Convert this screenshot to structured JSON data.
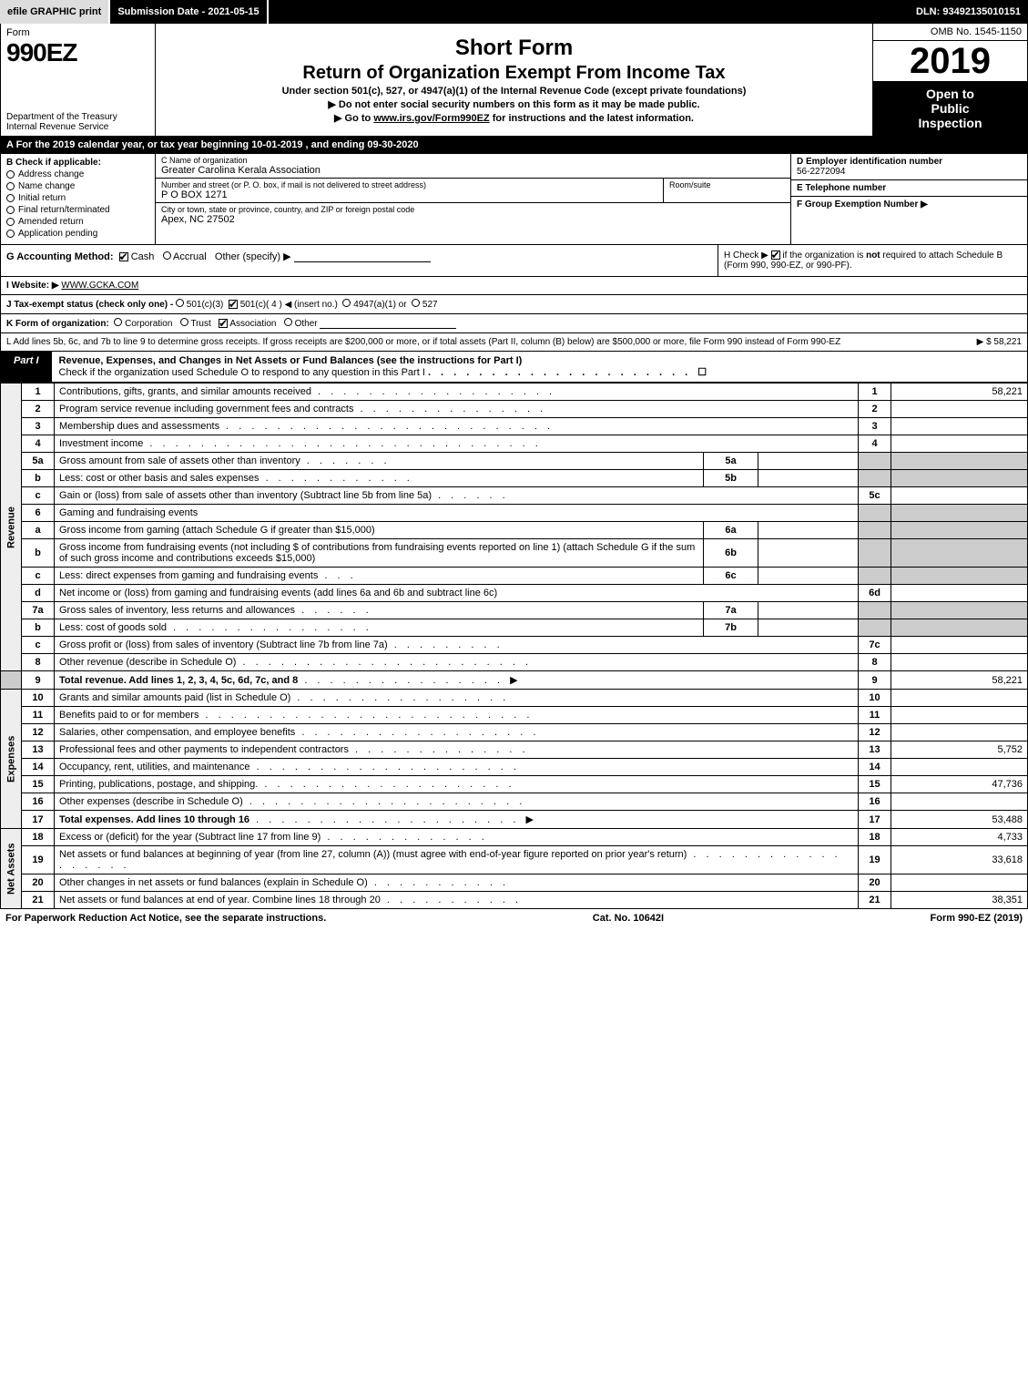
{
  "topbar": {
    "efile": "efile GRAPHIC",
    "print": "print",
    "submission_label": "Submission Date - 2021-05-15",
    "dln": "DLN: 93492135010151"
  },
  "header": {
    "form_label": "Form",
    "form_number": "990EZ",
    "dept": "Department of the Treasury",
    "irs": "Internal Revenue Service",
    "short_form": "Short Form",
    "return_title": "Return of Organization Exempt From Income Tax",
    "under_section": "Under section 501(c), 527, or 4947(a)(1) of the Internal Revenue Code (except private foundations)",
    "do_not": "▶ Do not enter social security numbers on this form as it may be made public.",
    "go_to_prefix": "▶ Go to ",
    "go_to_link": "www.irs.gov/Form990EZ",
    "go_to_suffix": " for instructions and the latest information.",
    "omb": "OMB No. 1545-1150",
    "year": "2019",
    "open1": "Open to",
    "open2": "Public",
    "open3": "Inspection"
  },
  "tax_year": "A  For the 2019 calendar year, or tax year beginning 10-01-2019 , and ending 09-30-2020",
  "section_b": {
    "header": "B  Check if applicable:",
    "opts": [
      "Address change",
      "Name change",
      "Initial return",
      "Final return/terminated",
      "Amended return",
      "Application pending"
    ]
  },
  "section_c": {
    "c_label": "C Name of organization",
    "org_name": "Greater Carolina Kerala Association",
    "addr_label": "Number and street (or P. O. box, if mail is not delivered to street address)",
    "room_label": "Room/suite",
    "address": "P O BOX 1271",
    "city_label": "City or town, state or province, country, and ZIP or foreign postal code",
    "city": "Apex, NC  27502"
  },
  "section_def": {
    "d_label": "D Employer identification number",
    "ein": "56-2272094",
    "e_label": "E Telephone number",
    "phone": "",
    "f_label": "F Group Exemption Number   ▶",
    "group": ""
  },
  "section_g": {
    "label": "G Accounting Method:",
    "cash": "Cash",
    "accrual": "Accrual",
    "other": "Other (specify) ▶"
  },
  "section_h": {
    "prefix": "H  Check ▶ ",
    "suffix": " if the organization is not required to attach Schedule B (Form 990, 990-EZ, or 990-PF).",
    "bold_not": "not"
  },
  "section_i": {
    "label": "I Website: ▶",
    "value": "WWW.GCKA.COM"
  },
  "section_j": {
    "label": "J Tax-exempt status (check only one) - ",
    "o1": "501(c)(3)",
    "o2": "501(c)( 4 ) ◀ (insert no.)",
    "o3": "4947(a)(1) or",
    "o4": "527"
  },
  "section_k": {
    "label": "K Form of organization:",
    "opts": [
      "Corporation",
      "Trust",
      "Association",
      "Other"
    ]
  },
  "section_l": {
    "text": "L Add lines 5b, 6c, and 7b to line 9 to determine gross receipts. If gross receipts are $200,000 or more, or if total assets (Part II, column (B) below) are $500,000 or more, file Form 990 instead of Form 990-EZ",
    "amount": "▶ $ 58,221"
  },
  "part1": {
    "tab": "Part I",
    "title": "Revenue, Expenses, and Changes in Net Assets or Fund Balances (see the instructions for Part I)",
    "check_line": "Check if the organization used Schedule O to respond to any question in this Part I",
    "check_box_end": "☐"
  },
  "side_labels": {
    "revenue": "Revenue",
    "expenses": "Expenses",
    "netassets": "Net Assets"
  },
  "lines": {
    "l1": {
      "no": "1",
      "desc": "Contributions, gifts, grants, and similar amounts received",
      "box": "1",
      "amt": "58,221"
    },
    "l2": {
      "no": "2",
      "desc": "Program service revenue including government fees and contracts",
      "box": "2",
      "amt": ""
    },
    "l3": {
      "no": "3",
      "desc": "Membership dues and assessments",
      "box": "3",
      "amt": ""
    },
    "l4": {
      "no": "4",
      "desc": "Investment income",
      "box": "4",
      "amt": ""
    },
    "l5a": {
      "no": "5a",
      "desc": "Gross amount from sale of assets other than inventory",
      "mid": "5a",
      "midval": ""
    },
    "l5b": {
      "no": "b",
      "desc": "Less: cost or other basis and sales expenses",
      "mid": "5b",
      "midval": ""
    },
    "l5c": {
      "no": "c",
      "desc": "Gain or (loss) from sale of assets other than inventory (Subtract line 5b from line 5a)",
      "box": "5c",
      "amt": ""
    },
    "l6": {
      "no": "6",
      "desc": "Gaming and fundraising events"
    },
    "l6a": {
      "no": "a",
      "desc": "Gross income from gaming (attach Schedule G if greater than $15,000)",
      "mid": "6a",
      "midval": ""
    },
    "l6b": {
      "no": "b",
      "desc": "Gross income from fundraising events (not including $               of contributions from fundraising events reported on line 1) (attach Schedule G if the sum of such gross income and contributions exceeds $15,000)",
      "mid": "6b",
      "midval": ""
    },
    "l6c": {
      "no": "c",
      "desc": "Less: direct expenses from gaming and fundraising events",
      "mid": "6c",
      "midval": ""
    },
    "l6d": {
      "no": "d",
      "desc": "Net income or (loss) from gaming and fundraising events (add lines 6a and 6b and subtract line 6c)",
      "box": "6d",
      "amt": ""
    },
    "l7a": {
      "no": "7a",
      "desc": "Gross sales of inventory, less returns and allowances",
      "mid": "7a",
      "midval": ""
    },
    "l7b": {
      "no": "b",
      "desc": "Less: cost of goods sold",
      "mid": "7b",
      "midval": ""
    },
    "l7c": {
      "no": "c",
      "desc": "Gross profit or (loss) from sales of inventory (Subtract line 7b from line 7a)",
      "box": "7c",
      "amt": ""
    },
    "l8": {
      "no": "8",
      "desc": "Other revenue (describe in Schedule O)",
      "box": "8",
      "amt": ""
    },
    "l9": {
      "no": "9",
      "desc": "Total revenue. Add lines 1, 2, 3, 4, 5c, 6d, 7c, and 8",
      "box": "9",
      "amt": "58,221",
      "bold": true,
      "arrow": true
    },
    "l10": {
      "no": "10",
      "desc": "Grants and similar amounts paid (list in Schedule O)",
      "box": "10",
      "amt": ""
    },
    "l11": {
      "no": "11",
      "desc": "Benefits paid to or for members",
      "box": "11",
      "amt": ""
    },
    "l12": {
      "no": "12",
      "desc": "Salaries, other compensation, and employee benefits",
      "box": "12",
      "amt": ""
    },
    "l13": {
      "no": "13",
      "desc": "Professional fees and other payments to independent contractors",
      "box": "13",
      "amt": "5,752"
    },
    "l14": {
      "no": "14",
      "desc": "Occupancy, rent, utilities, and maintenance",
      "box": "14",
      "amt": ""
    },
    "l15": {
      "no": "15",
      "desc": "Printing, publications, postage, and shipping.",
      "box": "15",
      "amt": "47,736"
    },
    "l16": {
      "no": "16",
      "desc": "Other expenses (describe in Schedule O)",
      "box": "16",
      "amt": ""
    },
    "l17": {
      "no": "17",
      "desc": "Total expenses. Add lines 10 through 16",
      "box": "17",
      "amt": "53,488",
      "bold": true,
      "arrow": true
    },
    "l18": {
      "no": "18",
      "desc": "Excess or (deficit) for the year (Subtract line 17 from line 9)",
      "box": "18",
      "amt": "4,733"
    },
    "l19": {
      "no": "19",
      "desc": "Net assets or fund balances at beginning of year (from line 27, column (A)) (must agree with end-of-year figure reported on prior year's return)",
      "box": "19",
      "amt": "33,618"
    },
    "l20": {
      "no": "20",
      "desc": "Other changes in net assets or fund balances (explain in Schedule O)",
      "box": "20",
      "amt": ""
    },
    "l21": {
      "no": "21",
      "desc": "Net assets or fund balances at end of year. Combine lines 18 through 20",
      "box": "21",
      "amt": "38,351"
    }
  },
  "footer": {
    "left": "For Paperwork Reduction Act Notice, see the separate instructions.",
    "mid": "Cat. No. 10642I",
    "right": "Form 990-EZ (2019)",
    "right_bold": "990-EZ"
  }
}
